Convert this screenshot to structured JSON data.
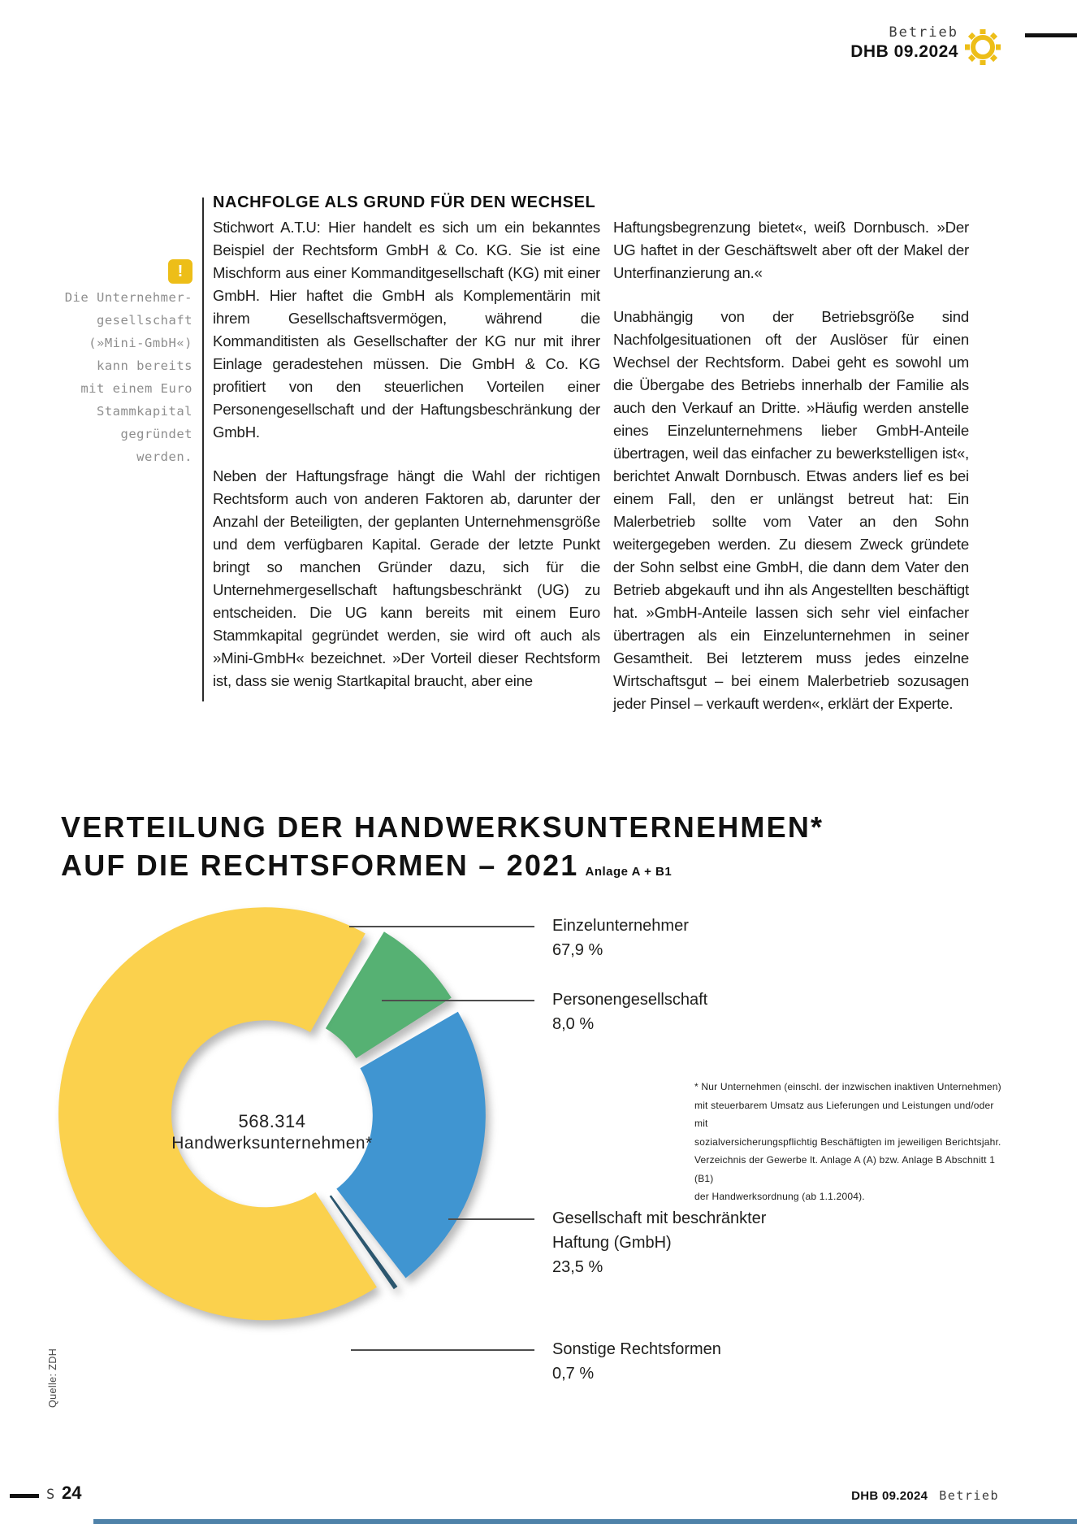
{
  "header": {
    "section": "Betrieb",
    "issue": "DHB 09.2024"
  },
  "callout": {
    "icon": "!",
    "text": "Die Unternehmer-\ngesellschaft\n(»Mini-GmbH«)\nkann bereits\nmit einem Euro\nStammkapital\ngegründet\nwerden."
  },
  "article": {
    "heading": "NACHFOLGE ALS GRUND FÜR DEN WECHSEL",
    "col1_para1": "Stichwort A.T.U: Hier handelt es sich um ein bekanntes Beispiel der Rechtsform GmbH & Co. KG. Sie ist eine Mischform aus einer Kommanditgesellschaft (KG) mit einer GmbH. Hier haftet die GmbH als Komplementärin mit ihrem Gesellschaftsvermögen, während die Kommanditisten als Gesellschafter der KG nur mit ihrer Einlage geradestehen müssen. Die GmbH & Co. KG profitiert von den steuerlichen Vorteilen einer Personengesellschaft und der Haftungsbeschränkung der GmbH.",
    "col1_para2": "Neben der Haftungsfrage hängt die Wahl der richtigen Rechtsform auch von anderen Faktoren ab, darunter der Anzahl der Beteiligten, der geplanten Unternehmensgröße und dem verfügbaren Kapital. Gerade der letzte Punkt bringt so manchen Gründer dazu, sich für die Unternehmergesellschaft haftungsbeschränkt (UG) zu entscheiden. Die UG kann bereits mit einem Euro Stammkapital gegründet werden, sie wird oft auch als »Mini-GmbH« bezeichnet. »Der Vorteil dieser Rechtsform ist, dass sie wenig Startkapital braucht, aber eine",
    "col2_para1": "Haftungsbegrenzung bietet«, weiß Dornbusch. »Der UG haftet in der Geschäftswelt aber oft der Makel der Unterfinanzierung an.«",
    "col2_para2": "Unabhängig von der Betriebsgröße sind Nachfolgesituationen oft der Auslöser für einen Wechsel der Rechtsform. Dabei geht es sowohl um die Übergabe des Betriebs innerhalb der Familie als auch den Verkauf an Dritte. »Häufig werden anstelle eines Einzelunternehmens lieber GmbH-Anteile übertragen, weil das einfacher zu bewerkstelligen ist«, berichtet Anwalt Dornbusch. Etwas anders lief es bei einem Fall, den er unlängst betreut hat: Ein Malerbetrieb sollte vom Vater an den Sohn weitergegeben werden. Zu diesem Zweck gründete der Sohn selbst eine GmbH, die dann dem Vater den Betrieb abgekauft und ihn als Angestellten beschäftigt hat. »GmbH-Anteile lassen sich sehr viel einfacher übertragen als ein Einzelunternehmen in seiner Gesamtheit. Bei letzterem muss jedes einzelne Wirtschaftsgut – bei einem Malerbetrieb sozusagen jeder Pinsel – verkauft werden«, erklärt der Experte."
  },
  "chart_data": {
    "type": "pie",
    "donut": true,
    "title_line1": "VERTEILUNG DER HANDWERKSUNTERNEHMEN*",
    "title_line2": "AUF DIE RECHTSFORMEN – 2021",
    "title_suffix": "Anlage A + B1",
    "center_value": "568.314",
    "center_label": "Handwerksunternehmen*",
    "start_angle_deg": 30,
    "segments": [
      {
        "label": "Einzelunternehmer",
        "value": 67.9,
        "pct_label": "67,9 %",
        "color": "#FBD14D"
      },
      {
        "label": "Personengesellschaft",
        "value": 8.0,
        "pct_label": "8,0 %",
        "color": "#56B173"
      },
      {
        "label": "Gesellschaft mit beschränkter Haftung (GmbH)",
        "value": 23.5,
        "pct_label": "23,5 %",
        "color": "#4095D1"
      },
      {
        "label": "Sonstige Rechtsformen",
        "value": 0.7,
        "pct_label": "0,7 %",
        "color": "#2B566E"
      }
    ],
    "source": "Quelle: ZDH",
    "footnote": "* Nur Unternehmen (einschl. der inzwischen inaktiven Unternehmen)\nmit steuerbarem Umsatz aus Lieferungen und Leistungen und/oder mit\nsozialversicherungspflichtig Beschäftigten im jeweiligen Berichtsjahr.\nVerzeichnis der Gewerbe lt. Anlage A (A) bzw. Anlage B Abschnitt 1 (B1)\nder Handwerksordnung (ab 1.1.2004)."
  },
  "footer": {
    "page_label": "S",
    "page_number": "24",
    "issue": "DHB 09.2024",
    "section": "Betrieb"
  }
}
